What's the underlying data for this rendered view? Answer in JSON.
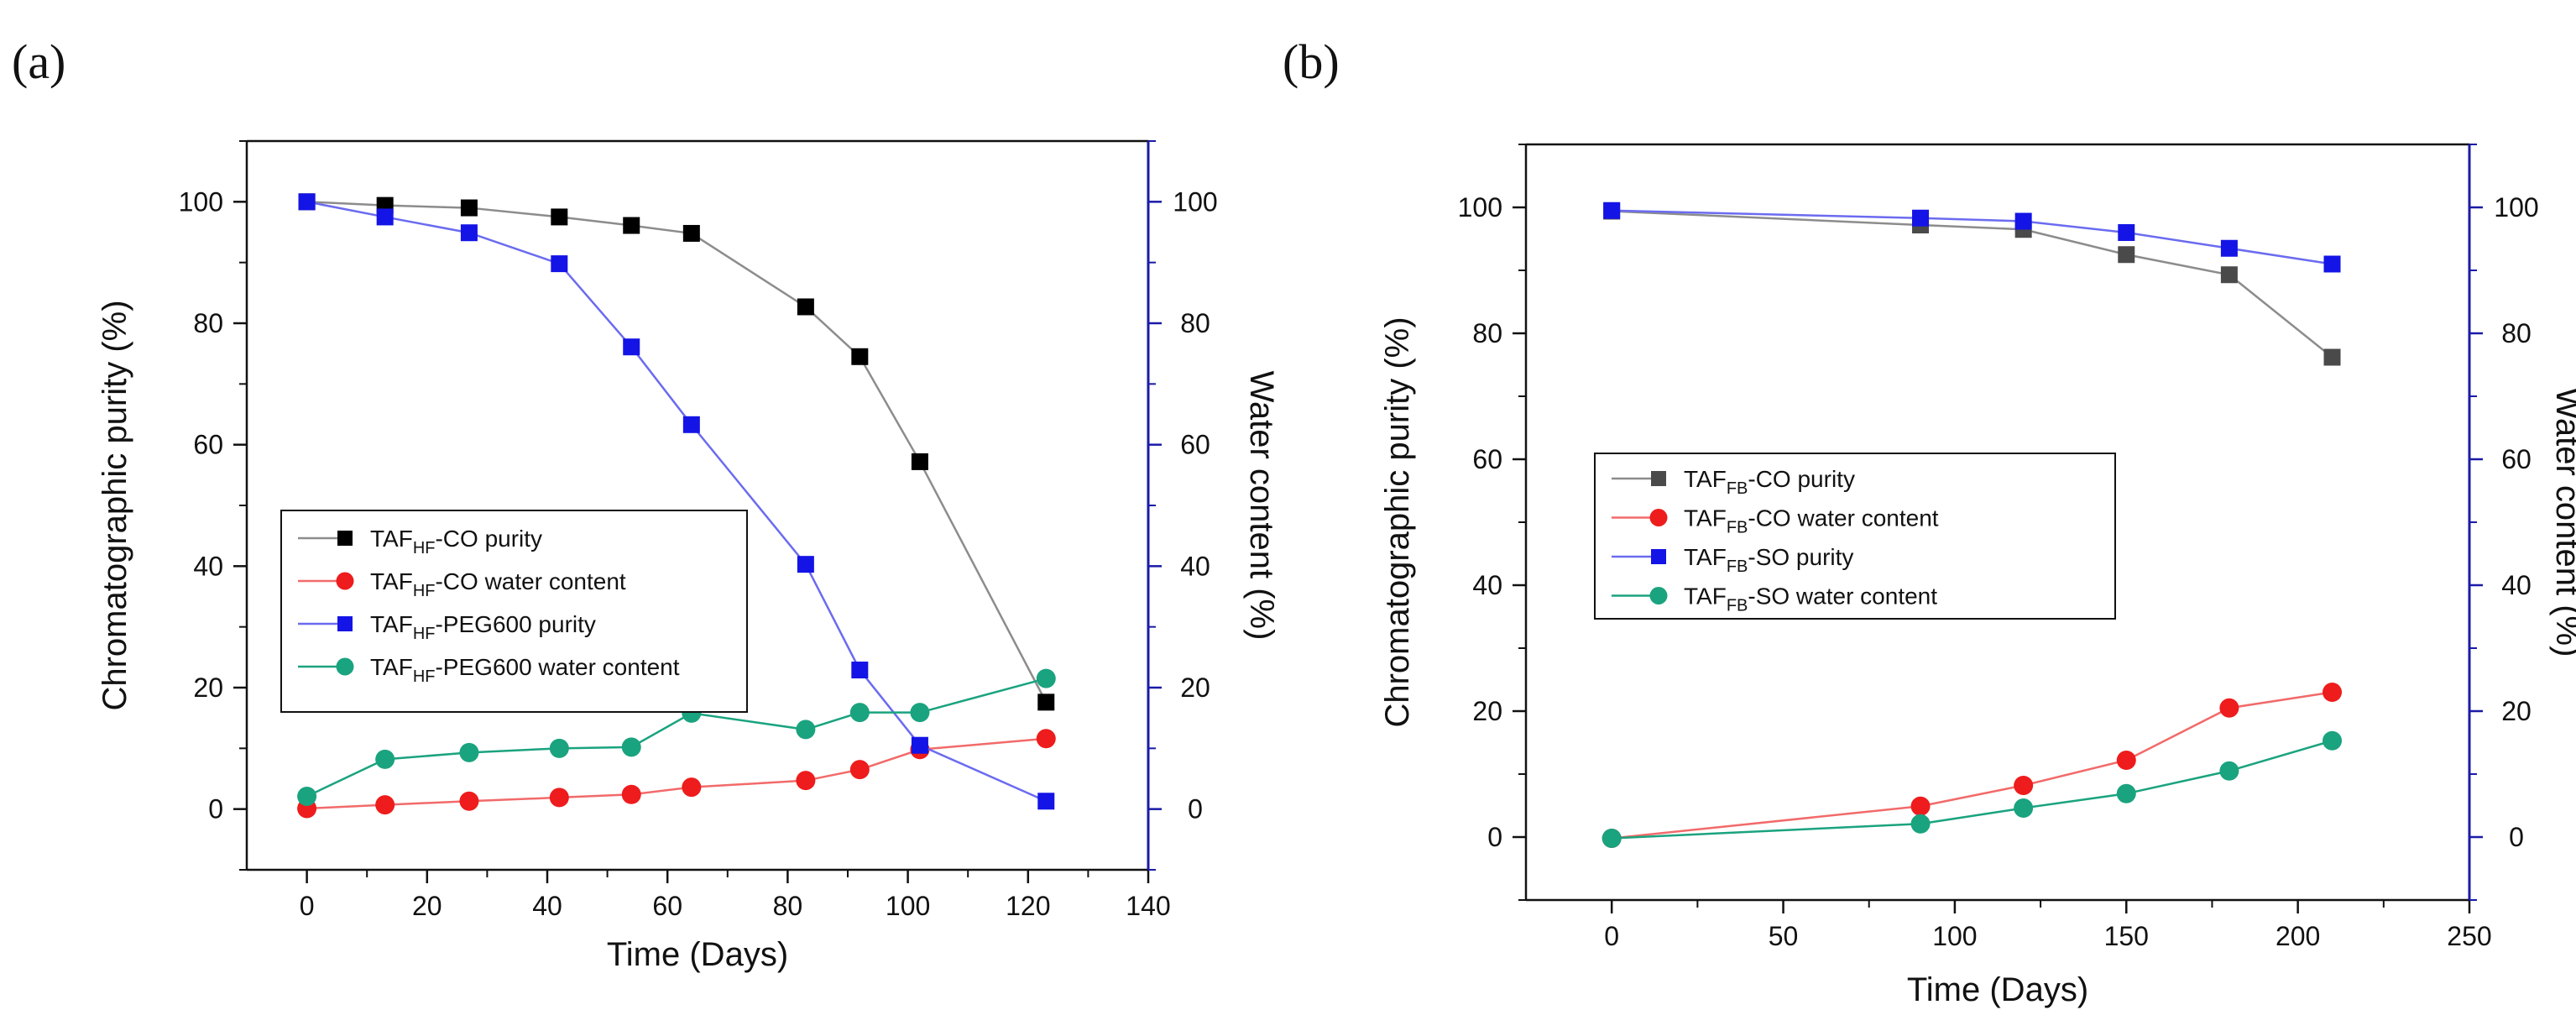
{
  "panel_labels": {
    "a": "(a)",
    "b": "(b)"
  },
  "chart_data": [
    {
      "type": "line",
      "panel": "(a)",
      "xlabel": "Time (Days)",
      "ylabel": "Chromatographic purity (%)",
      "y2label": "Water content (%)",
      "xlim": [
        -10,
        140
      ],
      "ylim": [
        -10,
        110
      ],
      "y2lim": [
        -10,
        110
      ],
      "xticks": [
        0,
        20,
        40,
        60,
        80,
        100,
        120,
        140
      ],
      "yticks": [
        0,
        20,
        40,
        60,
        80,
        100
      ],
      "y2ticks": [
        0,
        20,
        40,
        60,
        80,
        100
      ],
      "right_axis_color": "#1a1aa8",
      "grid": false,
      "legend_position": "middle-left",
      "series": [
        {
          "name": "TAF",
          "sub": "HF",
          "suffix": "-CO purity",
          "color": "#000000",
          "line_color": "#8c8c8c",
          "marker": "square",
          "x": [
            0,
            13,
            27,
            42,
            54,
            64,
            83,
            92,
            102,
            123
          ],
          "y": [
            100,
            99.4,
            99.0,
            97.5,
            96.1,
            94.8,
            82.7,
            74.5,
            57.2,
            17.6
          ]
        },
        {
          "name": "TAF",
          "sub": "HF",
          "suffix": "-CO water content",
          "color": "#ee1c1c",
          "line_color": "#f26a6a",
          "marker": "circle",
          "x": [
            0,
            13,
            27,
            42,
            54,
            64,
            83,
            92,
            102,
            123
          ],
          "y": [
            0.1,
            0.7,
            1.3,
            1.9,
            2.4,
            3.6,
            4.7,
            6.5,
            9.8,
            11.6
          ]
        },
        {
          "name": "TAF",
          "sub": "HF",
          "suffix": "-PEG600 purity",
          "color": "#1414e6",
          "line_color": "#6b6bf0",
          "marker": "square",
          "x": [
            0,
            13,
            27,
            42,
            54,
            64,
            83,
            92,
            102,
            123
          ],
          "y": [
            100,
            97.5,
            94.9,
            89.8,
            76.1,
            63.3,
            40.3,
            22.9,
            10.5,
            1.3
          ]
        },
        {
          "name": "TAF",
          "sub": "HF",
          "suffix": "-PEG600 water content",
          "color": "#1aa37f",
          "line_color": "#1aa37f",
          "marker": "circle",
          "x": [
            0,
            13,
            27,
            42,
            54,
            64,
            83,
            92,
            102,
            123
          ],
          "y": [
            2.1,
            8.2,
            9.3,
            10.0,
            10.2,
            15.8,
            13.1,
            15.9,
            15.9,
            21.5
          ]
        }
      ]
    },
    {
      "type": "line",
      "panel": "(b)",
      "xlabel": "Time (Days)",
      "ylabel": "Chromatographic purity (%)",
      "y2label": "Water content (%)",
      "xlim": [
        -25,
        250
      ],
      "ylim": [
        -10,
        110
      ],
      "y2lim": [
        -10,
        110
      ],
      "xticks": [
        0,
        50,
        100,
        150,
        200,
        250
      ],
      "yticks": [
        0,
        20,
        40,
        60,
        80,
        100
      ],
      "y2ticks": [
        0,
        20,
        40,
        60,
        80,
        100
      ],
      "right_axis_color": "#1a1aa8",
      "grid": false,
      "legend_position": "middle-left",
      "series": [
        {
          "name": "TAF",
          "sub": "FB",
          "suffix": "-CO purity",
          "color": "#4a4a4a",
          "line_color": "#8c8c8c",
          "marker": "square",
          "x": [
            0,
            90,
            120,
            150,
            180,
            210
          ],
          "y": [
            99.4,
            97.2,
            96.5,
            92.5,
            89.3,
            76.2
          ]
        },
        {
          "name": "TAF",
          "sub": "FB",
          "suffix": "-CO water content",
          "color": "#ee1c1c",
          "line_color": "#f26a6a",
          "marker": "circle",
          "x": [
            0,
            90,
            120,
            150,
            180,
            210
          ],
          "y": [
            -0.2,
            4.9,
            8.2,
            12.2,
            20.5,
            23.0
          ]
        },
        {
          "name": "TAF",
          "sub": "FB",
          "suffix": "-SO purity",
          "color": "#1414e6",
          "line_color": "#6b6bf0",
          "marker": "square",
          "x": [
            0,
            90,
            120,
            150,
            180,
            210
          ],
          "y": [
            99.5,
            98.3,
            97.8,
            96.0,
            93.5,
            91.0
          ]
        },
        {
          "name": "TAF",
          "sub": "FB",
          "suffix": "-SO water content",
          "color": "#1aa37f",
          "line_color": "#1aa37f",
          "marker": "circle",
          "x": [
            0,
            90,
            120,
            150,
            180,
            210
          ],
          "y": [
            -0.2,
            2.1,
            4.6,
            6.9,
            10.5,
            15.3
          ]
        }
      ]
    }
  ]
}
